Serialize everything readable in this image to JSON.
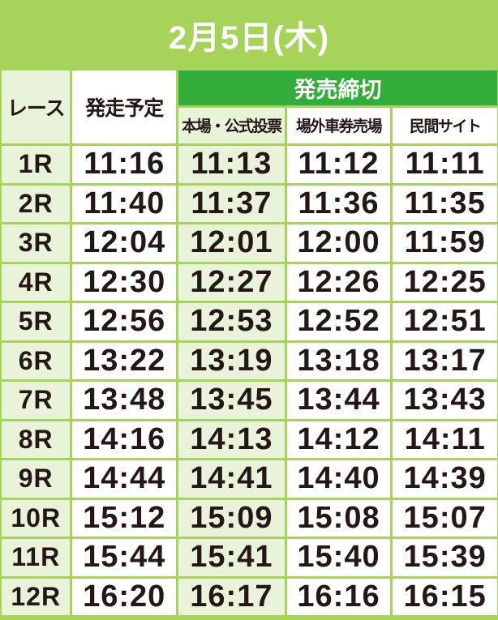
{
  "title": "2月5日(木)",
  "headers": {
    "race": "レース",
    "start": "発走予定",
    "deadline": "発売締切",
    "sub": [
      "本場・公式投票",
      "場外車券売場",
      "民間サイト"
    ]
  },
  "rows": [
    [
      "1R",
      "11:16",
      "11:13",
      "11:12",
      "11:11"
    ],
    [
      "2R",
      "11:40",
      "11:37",
      "11:36",
      "11:35"
    ],
    [
      "3R",
      "12:04",
      "12:01",
      "12:00",
      "11:59"
    ],
    [
      "4R",
      "12:30",
      "12:27",
      "12:26",
      "12:25"
    ],
    [
      "5R",
      "12:56",
      "12:53",
      "12:52",
      "12:51"
    ],
    [
      "6R",
      "13:22",
      "13:19",
      "13:18",
      "13:17"
    ],
    [
      "7R",
      "13:48",
      "13:45",
      "13:44",
      "13:43"
    ],
    [
      "8R",
      "14:16",
      "14:13",
      "14:12",
      "14:11"
    ],
    [
      "9R",
      "14:44",
      "14:41",
      "14:40",
      "14:39"
    ],
    [
      "10R",
      "15:12",
      "15:09",
      "15:08",
      "15:07"
    ],
    [
      "11R",
      "15:44",
      "15:41",
      "15:40",
      "15:39"
    ],
    [
      "12R",
      "16:20",
      "16:17",
      "16:16",
      "16:15"
    ]
  ],
  "colors": {
    "frame": "#a6d35a",
    "header_green": "#33ad3a",
    "light_cell": "#e8f3da",
    "text": "#231815"
  }
}
